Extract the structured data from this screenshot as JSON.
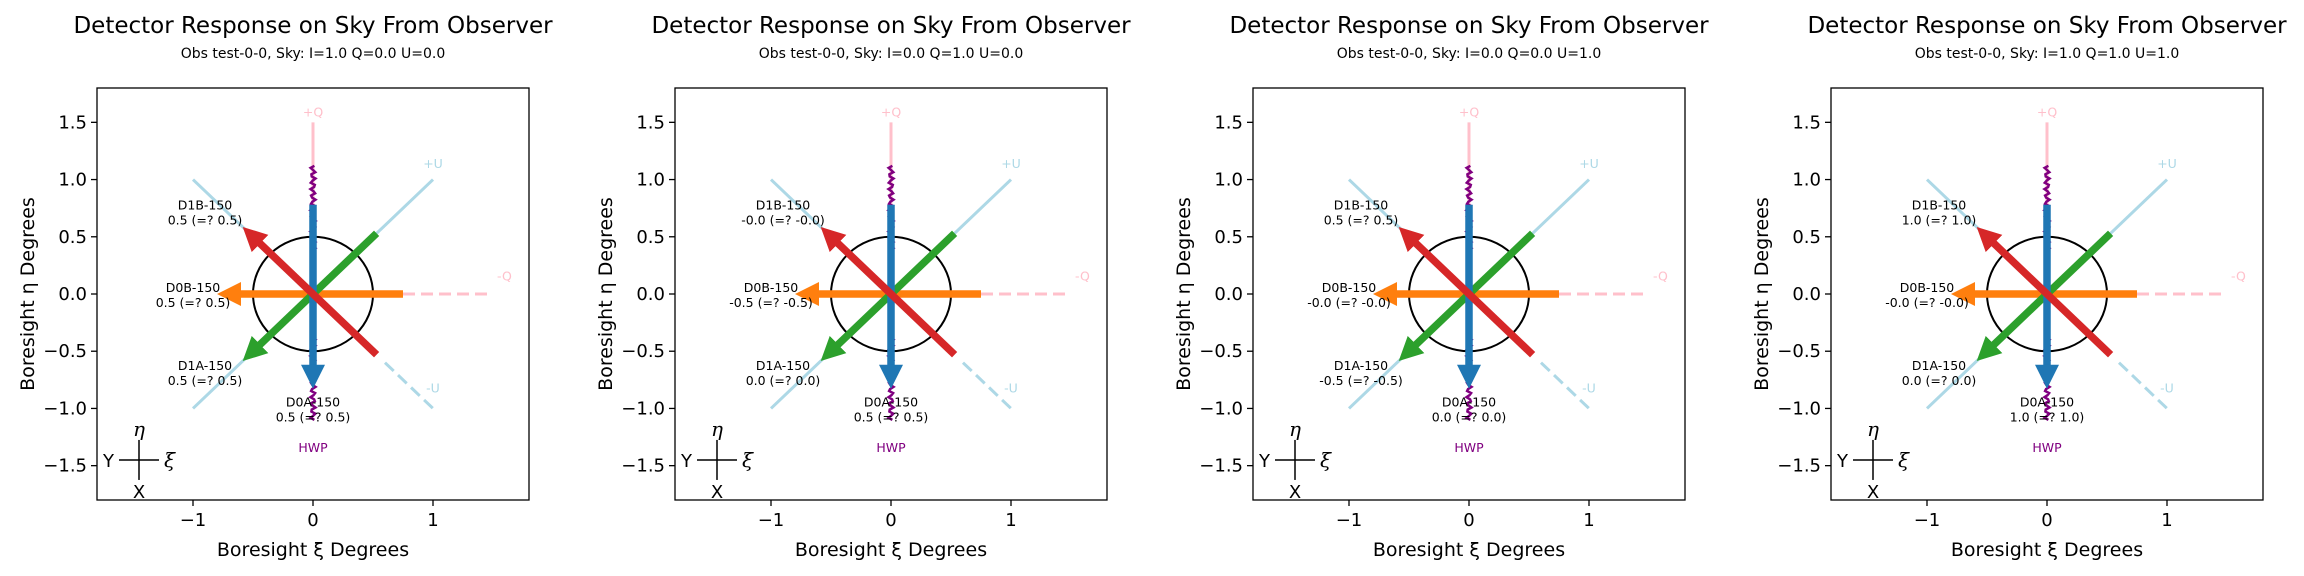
{
  "chart_data": [
    {
      "type": "line",
      "title": "Detector Response on Sky From Observer",
      "subtitle": "Obs test-0-0, Sky: I=1.0 Q=0.0 U=0.0",
      "xlabel": "Boresight ξ Degrees",
      "ylabel": "Boresight η Degrees",
      "xlim": [
        -1.8,
        1.8
      ],
      "ylim": [
        -1.8,
        1.8
      ],
      "xticks": [
        "−1",
        "0",
        "1"
      ],
      "yticks": [
        "1.5",
        "1.0",
        "0.5",
        "0.0",
        "−0.5",
        "−1.0",
        "−1.5"
      ],
      "detectors": [
        {
          "name": "D1B-150",
          "value": "0.5 (=? 0.5)"
        },
        {
          "name": "D0B-150",
          "value": "0.5 (=? 0.5)"
        },
        {
          "name": "D1A-150",
          "value": "0.5 (=? 0.5)"
        },
        {
          "name": "D0A-150",
          "value": "0.5 (=? 0.5)"
        }
      ]
    },
    {
      "type": "line",
      "title": "Detector Response on Sky From Observer",
      "subtitle": "Obs test-0-0, Sky: I=0.0 Q=1.0 U=0.0",
      "xlabel": "Boresight ξ Degrees",
      "ylabel": "Boresight η Degrees",
      "xlim": [
        -1.8,
        1.8
      ],
      "ylim": [
        -1.8,
        1.8
      ],
      "xticks": [
        "−1",
        "0",
        "1"
      ],
      "yticks": [
        "1.5",
        "1.0",
        "0.5",
        "0.0",
        "−0.5",
        "−1.0",
        "−1.5"
      ],
      "detectors": [
        {
          "name": "D1B-150",
          "value": "-0.0 (=? -0.0)"
        },
        {
          "name": "D0B-150",
          "value": "-0.5 (=? -0.5)"
        },
        {
          "name": "D1A-150",
          "value": "0.0 (=? 0.0)"
        },
        {
          "name": "D0A-150",
          "value": "0.5 (=? 0.5)"
        }
      ]
    },
    {
      "type": "line",
      "title": "Detector Response on Sky From Observer",
      "subtitle": "Obs test-0-0, Sky: I=0.0 Q=0.0 U=1.0",
      "xlabel": "Boresight ξ Degrees",
      "ylabel": "Boresight η Degrees",
      "xlim": [
        -1.8,
        1.8
      ],
      "ylim": [
        -1.8,
        1.8
      ],
      "xticks": [
        "−1",
        "0",
        "1"
      ],
      "yticks": [
        "1.5",
        "1.0",
        "0.5",
        "0.0",
        "−0.5",
        "−1.0",
        "−1.5"
      ],
      "detectors": [
        {
          "name": "D1B-150",
          "value": "0.5 (=? 0.5)"
        },
        {
          "name": "D0B-150",
          "value": "-0.0 (=? -0.0)"
        },
        {
          "name": "D1A-150",
          "value": "-0.5 (=? -0.5)"
        },
        {
          "name": "D0A-150",
          "value": "0.0 (=? 0.0)"
        }
      ]
    },
    {
      "type": "line",
      "title": "Detector Response on Sky From Observer",
      "subtitle": "Obs test-0-0, Sky: I=1.0 Q=1.0 U=1.0",
      "xlabel": "Boresight ξ Degrees",
      "ylabel": "Boresight η Degrees",
      "xlim": [
        -1.8,
        1.8
      ],
      "ylim": [
        -1.8,
        1.8
      ],
      "xticks": [
        "−1",
        "0",
        "1"
      ],
      "yticks": [
        "1.5",
        "1.0",
        "0.5",
        "0.0",
        "−0.5",
        "−1.0",
        "−1.5"
      ],
      "detectors": [
        {
          "name": "D1B-150",
          "value": "1.0 (=? 1.0)"
        },
        {
          "name": "D0B-150",
          "value": "-0.0 (=? -0.0)"
        },
        {
          "name": "D1A-150",
          "value": "0.0 (=? 0.0)"
        },
        {
          "name": "D0A-150",
          "value": "1.0 (=? 1.0)"
        }
      ]
    }
  ],
  "labels": {
    "plus_q": "+Q",
    "minus_q": "-Q",
    "plus_u": "+U",
    "minus_u": "-U",
    "hwp": "HWP",
    "eta": "η",
    "xi": "ξ",
    "y_glyph": "Y",
    "x_glyph": "X"
  },
  "colors": {
    "q_axis": "#ffc0cb",
    "u_axis": "#add8e6",
    "hwp": "#800080",
    "d0a": "#1f77b4",
    "d0b": "#ff7f0e",
    "d1a": "#2ca02c",
    "d1b": "#d62728"
  }
}
